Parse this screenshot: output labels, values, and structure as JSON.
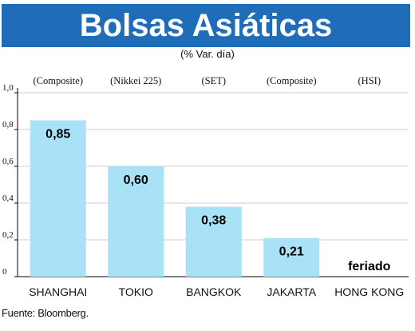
{
  "chart_data": {
    "type": "bar",
    "title": "Bolsas Asiáticas",
    "subtitle": "(% Var. día)",
    "categories": [
      "SHANGHAI",
      "TOKIO",
      "BANGKOK",
      "JAKARTA",
      "HONG KONG"
    ],
    "indices": [
      "(Composite)",
      "(Nikkei 225)",
      "(SET)",
      "(Composite)",
      "(HSI)"
    ],
    "values": [
      0.85,
      0.6,
      0.38,
      0.21,
      null
    ],
    "value_labels": [
      "0,85",
      "0,60",
      "0,38",
      "0,21",
      "feriado"
    ],
    "ylim": [
      0,
      1.0
    ],
    "yticks": [
      0,
      0.2,
      0.4,
      0.6,
      0.8,
      1.0
    ],
    "ytick_labels": [
      "0",
      "0,2",
      "0,4",
      "0,6",
      "0,8",
      "1,0"
    ],
    "grid": true,
    "bar_color": "#a9e2f7",
    "title_bar_color": "#1f6db8",
    "source": "Fuente: Bloomberg."
  }
}
